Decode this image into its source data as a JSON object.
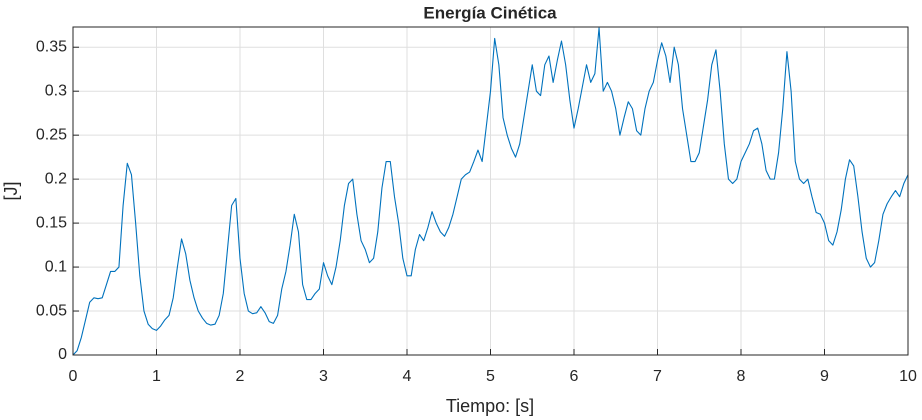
{
  "chart_data": {
    "type": "line",
    "title": "Energía Cinética",
    "xlabel": "Tiempo: [s]",
    "ylabel": "[J]",
    "color": "#0072bd",
    "grid": true,
    "xlim": [
      0,
      10
    ],
    "ylim": [
      0,
      0.373
    ],
    "xticks": [
      0,
      1,
      2,
      3,
      4,
      5,
      6,
      7,
      8,
      9,
      10
    ],
    "yticks": [
      0,
      0.05,
      0.1,
      0.15,
      0.2,
      0.25,
      0.3,
      0.35
    ],
    "x": [
      0,
      0.05,
      0.1,
      0.15,
      0.2,
      0.25,
      0.3,
      0.35,
      0.4,
      0.45,
      0.5,
      0.55,
      0.6,
      0.65,
      0.7,
      0.75,
      0.8,
      0.85,
      0.9,
      0.95,
      1,
      1.05,
      1.1,
      1.15,
      1.2,
      1.25,
      1.3,
      1.35,
      1.4,
      1.45,
      1.5,
      1.55,
      1.6,
      1.65,
      1.7,
      1.75,
      1.8,
      1.85,
      1.9,
      1.95,
      2,
      2.05,
      2.1,
      2.15,
      2.2,
      2.25,
      2.3,
      2.35,
      2.4,
      2.45,
      2.5,
      2.55,
      2.6,
      2.65,
      2.7,
      2.75,
      2.8,
      2.85,
      2.9,
      2.95,
      3,
      3.05,
      3.1,
      3.15,
      3.2,
      3.25,
      3.3,
      3.35,
      3.4,
      3.45,
      3.5,
      3.55,
      3.6,
      3.65,
      3.7,
      3.75,
      3.8,
      3.85,
      3.9,
      3.95,
      4,
      4.05,
      4.1,
      4.15,
      4.2,
      4.25,
      4.3,
      4.35,
      4.4,
      4.45,
      4.5,
      4.55,
      4.6,
      4.65,
      4.7,
      4.75,
      4.8,
      4.85,
      4.9,
      4.95,
      5,
      5.05,
      5.1,
      5.15,
      5.2,
      5.25,
      5.3,
      5.35,
      5.4,
      5.45,
      5.5,
      5.55,
      5.6,
      5.65,
      5.7,
      5.75,
      5.8,
      5.85,
      5.9,
      5.95,
      6,
      6.05,
      6.1,
      6.15,
      6.2,
      6.25,
      6.3,
      6.35,
      6.4,
      6.45,
      6.5,
      6.55,
      6.6,
      6.65,
      6.7,
      6.75,
      6.8,
      6.85,
      6.9,
      6.95,
      7,
      7.05,
      7.1,
      7.15,
      7.2,
      7.25,
      7.3,
      7.35,
      7.4,
      7.45,
      7.5,
      7.55,
      7.6,
      7.65,
      7.7,
      7.75,
      7.8,
      7.85,
      7.9,
      7.95,
      8,
      8.05,
      8.1,
      8.15,
      8.2,
      8.25,
      8.3,
      8.35,
      8.4,
      8.45,
      8.5,
      8.55,
      8.6,
      8.65,
      8.7,
      8.75,
      8.8,
      8.85,
      8.9,
      8.95,
      9,
      9.05,
      9.1,
      9.15,
      9.2,
      9.25,
      9.3,
      9.35,
      9.4,
      9.45,
      9.5,
      9.55,
      9.6,
      9.65,
      9.7,
      9.75,
      9.8,
      9.85,
      9.9,
      9.95,
      10
    ],
    "values": [
      0,
      0.005,
      0.02,
      0.04,
      0.06,
      0.065,
      0.064,
      0.065,
      0.08,
      0.095,
      0.095,
      0.1,
      0.17,
      0.218,
      0.205,
      0.15,
      0.09,
      0.05,
      0.035,
      0.03,
      0.028,
      0.033,
      0.04,
      0.045,
      0.065,
      0.1,
      0.132,
      0.115,
      0.085,
      0.065,
      0.05,
      0.042,
      0.036,
      0.034,
      0.035,
      0.045,
      0.07,
      0.12,
      0.17,
      0.178,
      0.11,
      0.07,
      0.05,
      0.047,
      0.048,
      0.055,
      0.048,
      0.038,
      0.036,
      0.045,
      0.075,
      0.095,
      0.125,
      0.16,
      0.14,
      0.08,
      0.063,
      0.063,
      0.07,
      0.075,
      0.105,
      0.09,
      0.08,
      0.1,
      0.13,
      0.17,
      0.195,
      0.2,
      0.16,
      0.13,
      0.12,
      0.105,
      0.11,
      0.14,
      0.19,
      0.22,
      0.22,
      0.18,
      0.15,
      0.11,
      0.09,
      0.09,
      0.12,
      0.137,
      0.13,
      0.145,
      0.163,
      0.15,
      0.14,
      0.135,
      0.145,
      0.16,
      0.18,
      0.2,
      0.205,
      0.208,
      0.22,
      0.233,
      0.22,
      0.26,
      0.3,
      0.36,
      0.33,
      0.27,
      0.25,
      0.235,
      0.225,
      0.24,
      0.27,
      0.3,
      0.33,
      0.3,
      0.295,
      0.33,
      0.34,
      0.31,
      0.335,
      0.357,
      0.33,
      0.29,
      0.258,
      0.28,
      0.305,
      0.33,
      0.31,
      0.32,
      0.372,
      0.3,
      0.31,
      0.3,
      0.28,
      0.25,
      0.27,
      0.288,
      0.28,
      0.255,
      0.25,
      0.28,
      0.3,
      0.31,
      0.335,
      0.355,
      0.34,
      0.31,
      0.35,
      0.33,
      0.28,
      0.25,
      0.22,
      0.22,
      0.23,
      0.26,
      0.29,
      0.33,
      0.347,
      0.3,
      0.24,
      0.2,
      0.195,
      0.2,
      0.22,
      0.23,
      0.24,
      0.255,
      0.258,
      0.24,
      0.21,
      0.2,
      0.2,
      0.23,
      0.28,
      0.345,
      0.3,
      0.22,
      0.2,
      0.195,
      0.2,
      0.18,
      0.162,
      0.16,
      0.15,
      0.13,
      0.125,
      0.14,
      0.165,
      0.2,
      0.222,
      0.215,
      0.18,
      0.14,
      0.11,
      0.1,
      0.105,
      0.13,
      0.16,
      0.172,
      0.18,
      0.187,
      0.18,
      0.195,
      0.205
    ]
  }
}
